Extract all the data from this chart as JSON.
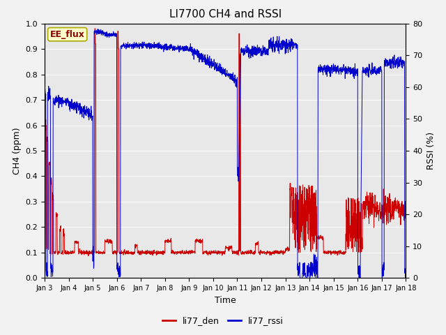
{
  "title": "LI7700 CH4 and RSSI",
  "xlabel": "Time",
  "ylabel_left": "CH4 (ppm)",
  "ylabel_right": "RSSI (%)",
  "ylim_left": [
    0.0,
    1.0
  ],
  "ylim_right": [
    0,
    80
  ],
  "xtick_labels": [
    "Jan 3",
    "Jan 4",
    "Jan 5",
    "Jan 6",
    "Jan 7",
    "Jan 8",
    "Jan 9",
    "Jan 10",
    "Jan 11",
    "Jan 12",
    "Jan 13",
    "Jan 14",
    "Jan 15",
    "Jan 16",
    "Jan 17",
    "Jan 18"
  ],
  "color_ch4": "#cc0000",
  "color_rssi": "#0000cc",
  "legend_label_ch4": "li77_den",
  "legend_label_rssi": "li77_rssi",
  "text_label": "EE_flux",
  "background_color": "#e8e8e8",
  "fig_background": "#f2f2f2",
  "title_fontsize": 11,
  "axis_fontsize": 9,
  "tick_fontsize": 8
}
